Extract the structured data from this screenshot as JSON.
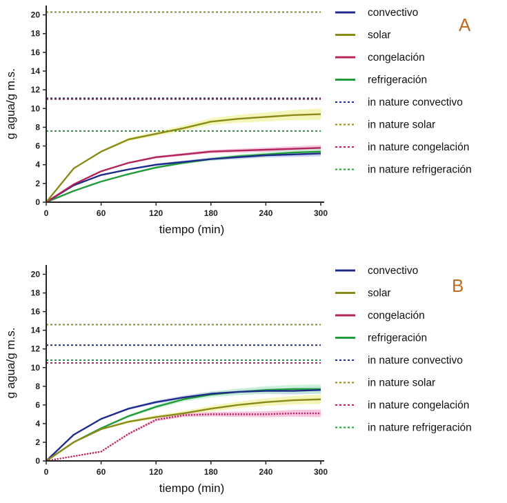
{
  "colors": {
    "convectivo": "#1f2a8a",
    "solar": "#8a8a1a",
    "congelacion": "#b0245a",
    "refrigeracion": "#239a3a",
    "band_convectivo": "#b9c3ef",
    "band_solar": "#f0f2a0",
    "band_congelacion": "#f3b3d6",
    "band_refrigeracion": "#bfeed0",
    "panel_letter": "#c06a1c",
    "axis": "#222222"
  },
  "chart_data": [
    {
      "type": "line",
      "panel_label": "A",
      "xlabel": "tiempo (min)",
      "ylabel": "g agua/g m.s.",
      "xlim": [
        0,
        300
      ],
      "ylim": [
        0,
        21
      ],
      "xticks": [
        "0",
        "60",
        "120",
        "180",
        "240",
        "300"
      ],
      "yticks": [
        "0",
        "2",
        "4",
        "6",
        "8",
        "10",
        "12",
        "14",
        "16",
        "18",
        "20"
      ],
      "x": [
        0,
        30,
        60,
        90,
        120,
        150,
        180,
        210,
        240,
        270,
        300
      ],
      "series": [
        {
          "name": "convectivo",
          "key": "convectivo",
          "values": [
            0,
            1.8,
            2.9,
            3.5,
            4.0,
            4.3,
            4.6,
            4.8,
            5.0,
            5.1,
            5.2
          ],
          "band": 0.3
        },
        {
          "name": "solar",
          "key": "solar",
          "values": [
            0,
            3.6,
            5.4,
            6.7,
            7.3,
            7.9,
            8.6,
            8.9,
            9.1,
            9.3,
            9.4
          ],
          "band": 0.6
        },
        {
          "name": "congelación",
          "key": "congelacion",
          "values": [
            0,
            1.9,
            3.3,
            4.2,
            4.8,
            5.1,
            5.4,
            5.5,
            5.6,
            5.7,
            5.8
          ],
          "band": 0.3
        },
        {
          "name": "refrigeración",
          "key": "refrigeracion",
          "values": [
            0,
            1.2,
            2.2,
            3.0,
            3.7,
            4.2,
            4.6,
            4.9,
            5.1,
            5.3,
            5.4
          ],
          "band": 0.3
        }
      ],
      "reference_lines": [
        {
          "name": "in nature convectivo",
          "key": "convectivo",
          "value": 11.1
        },
        {
          "name": "in nature solar",
          "key": "solar",
          "value": 20.3
        },
        {
          "name": "in nature congelación",
          "key": "congelacion",
          "value": 11.0
        },
        {
          "name": "in nature refrigeración",
          "key": "refrigeracion",
          "value": 7.6
        }
      ]
    },
    {
      "type": "line",
      "panel_label": "B",
      "xlabel": "tiempo (min)",
      "ylabel": "g agua/g m.s.",
      "xlim": [
        0,
        300
      ],
      "ylim": [
        0,
        21
      ],
      "xticks": [
        "0",
        "60",
        "120",
        "180",
        "240",
        "300"
      ],
      "yticks": [
        "0",
        "2",
        "4",
        "6",
        "8",
        "10",
        "12",
        "14",
        "16",
        "18",
        "20"
      ],
      "x": [
        0,
        30,
        60,
        90,
        120,
        150,
        180,
        210,
        240,
        270,
        300
      ],
      "series": [
        {
          "name": "convectivo",
          "key": "convectivo",
          "values": [
            0,
            2.8,
            4.5,
            5.6,
            6.3,
            6.8,
            7.2,
            7.4,
            7.5,
            7.5,
            7.6
          ],
          "band": 0.4
        },
        {
          "name": "solar",
          "key": "solar",
          "values": [
            0,
            2.0,
            3.4,
            4.2,
            4.7,
            5.1,
            5.6,
            6.0,
            6.3,
            6.5,
            6.6
          ],
          "band": 0.5
        },
        {
          "name": "congelación",
          "key": "congelacion",
          "values": [
            0,
            0.5,
            1.0,
            2.9,
            4.4,
            4.9,
            5.0,
            5.0,
            5.0,
            5.1,
            5.1
          ],
          "band": 0.4
        },
        {
          "name": "refrigeración",
          "key": "refrigeracion",
          "values": [
            0,
            2.0,
            3.5,
            4.8,
            5.8,
            6.6,
            7.1,
            7.4,
            7.6,
            7.7,
            7.7
          ],
          "band": 0.5
        }
      ],
      "reference_lines": [
        {
          "name": "in nature convectivo",
          "key": "convectivo",
          "value": 12.4
        },
        {
          "name": "in nature solar",
          "key": "solar",
          "value": 14.6
        },
        {
          "name": "in nature congelación",
          "key": "congelacion",
          "value": 10.5
        },
        {
          "name": "in nature refrigeración",
          "key": "refrigeracion",
          "value": 10.8
        }
      ]
    }
  ]
}
